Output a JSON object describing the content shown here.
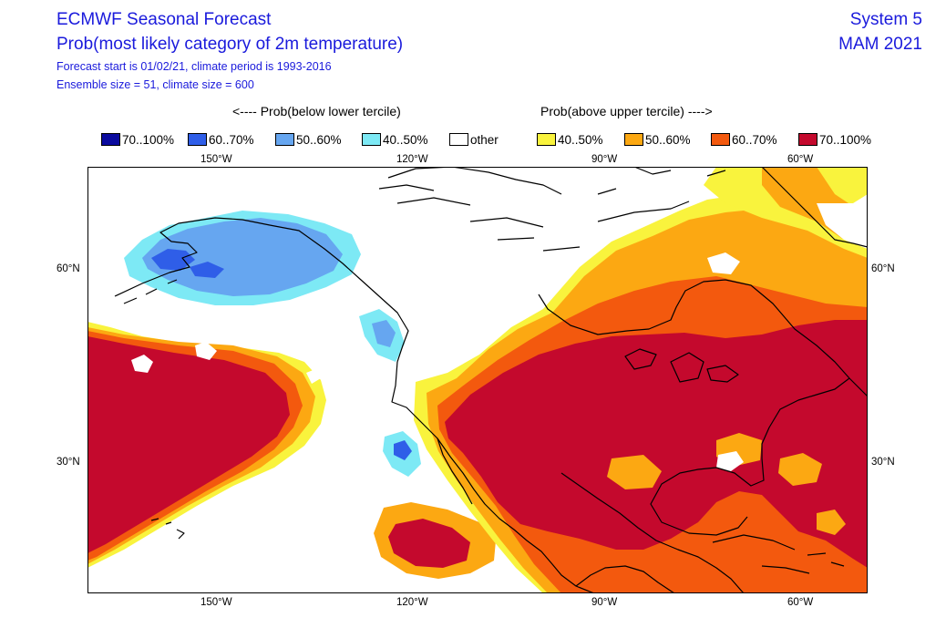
{
  "header": {
    "title": "ECMWF Seasonal Forecast",
    "subtitle": "Prob(most likely category of 2m temperature)",
    "forecast_line": "Forecast start is 01/02/21, climate period is 1993-2016",
    "ensemble_line": "Ensemble size = 51, climate size = 600",
    "system": "System 5",
    "season": "MAM 2021"
  },
  "legend": {
    "below_label": "<---- Prob(below lower tercile)",
    "above_label": "Prob(above upper tercile) ---->",
    "items": [
      {
        "label": "70..100%",
        "color": "#0a0a9e"
      },
      {
        "label": "60..70%",
        "color": "#2f5ee8"
      },
      {
        "label": "50..60%",
        "color": "#66a6f0"
      },
      {
        "label": "40..50%",
        "color": "#7de9f5"
      },
      {
        "label": "other",
        "color": "#ffffff"
      },
      {
        "label": "40..50%",
        "color": "#f9f33d"
      },
      {
        "label": "50..60%",
        "color": "#fca812"
      },
      {
        "label": "60..70%",
        "color": "#f3590e"
      },
      {
        "label": "70..100%",
        "color": "#c4092d"
      }
    ]
  },
  "map": {
    "projection": "equirectangular",
    "lon_range": [
      "170°W",
      "50°W"
    ],
    "lat_range": [
      "10°N",
      "75°N"
    ],
    "lon_ticks": [
      "150°W",
      "120°W",
      "90°W",
      "60°W"
    ],
    "lat_ticks": [
      "60°N",
      "30°N"
    ]
  }
}
